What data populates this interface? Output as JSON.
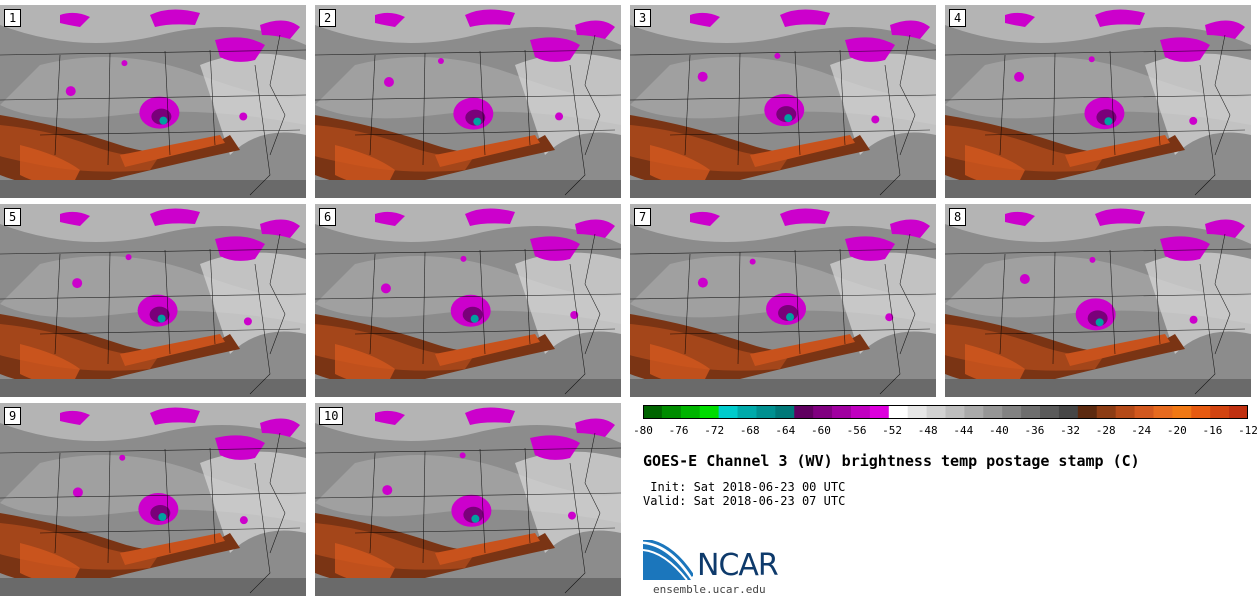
{
  "panels": [
    {
      "label": "1"
    },
    {
      "label": "2"
    },
    {
      "label": "3"
    },
    {
      "label": "4"
    },
    {
      "label": "5"
    },
    {
      "label": "6"
    },
    {
      "label": "7"
    },
    {
      "label": "8"
    },
    {
      "label": "9"
    },
    {
      "label": "10"
    }
  ],
  "colorbar": {
    "ticks": [
      "-80",
      "-76",
      "-72",
      "-68",
      "-64",
      "-60",
      "-56",
      "-52",
      "-48",
      "-44",
      "-40",
      "-36",
      "-32",
      "-28",
      "-24",
      "-20",
      "-16",
      "-12"
    ],
    "colors": [
      "#006400",
      "#008c00",
      "#00b400",
      "#00dc00",
      "#00cccc",
      "#00aaaa",
      "#009090",
      "#007878",
      "#600060",
      "#800080",
      "#a000a0",
      "#c000c0",
      "#dd00dd",
      "#ffffff",
      "#e6e6e6",
      "#d2d2d2",
      "#bebebe",
      "#aaaaaa",
      "#969696",
      "#828282",
      "#6e6e6e",
      "#5a5a5a",
      "#464646",
      "#5c2a10",
      "#8c3c14",
      "#b44a18",
      "#d2581e",
      "#e66a1e",
      "#f07814",
      "#e65a10",
      "#d24410",
      "#c03010"
    ]
  },
  "title": "GOES-E Channel 3 (WV) brightness temp postage stamp (C)",
  "init_line": " Init: Sat 2018-06-23 00 UTC",
  "valid_line": "Valid: Sat 2018-06-23 07 UTC",
  "logo_text": "NCAR",
  "url": "ensemble.ucar.edu"
}
